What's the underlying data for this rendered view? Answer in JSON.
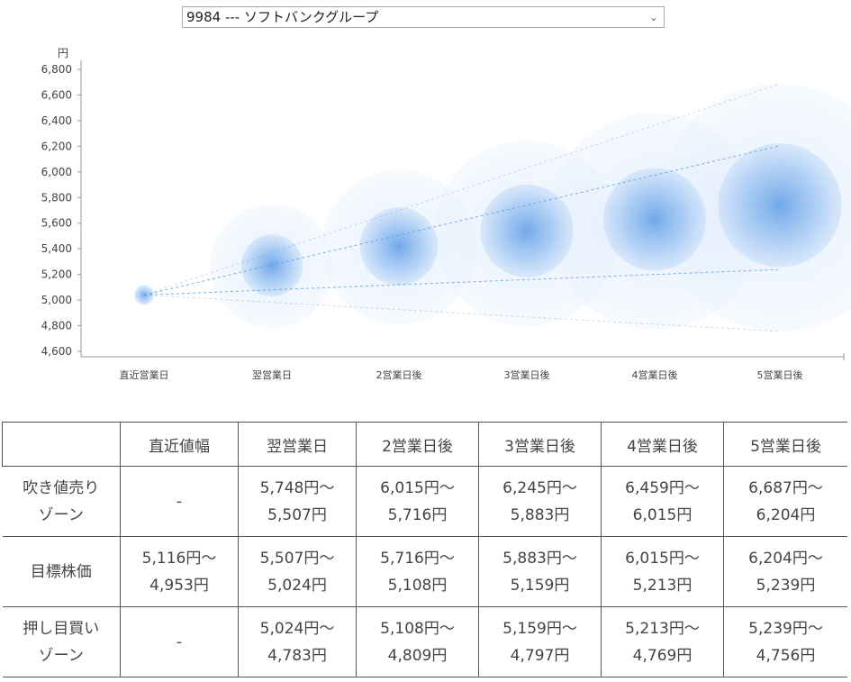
{
  "selector": {
    "value": "9984 --- ソフトバンクグループ"
  },
  "chart_data": {
    "type": "scatter",
    "title": "",
    "xlabel": "",
    "ylabel": "円",
    "ylim": [
      4600,
      6800
    ],
    "yticks": [
      4600,
      4800,
      5000,
      5200,
      5400,
      5600,
      5800,
      6000,
      6200,
      6400,
      6600,
      6800
    ],
    "categories": [
      "直近営業日",
      "翌営業日",
      "2営業日後",
      "3営業日後",
      "4営業日後",
      "5営業日後"
    ],
    "center": [
      5040,
      5270,
      5420,
      5540,
      5630,
      5740
    ],
    "sell_zone_upper": [
      5116,
      5748,
      6015,
      6245,
      6459,
      6687
    ],
    "target_upper": [
      5116,
      5507,
      5716,
      5883,
      6015,
      6204
    ],
    "target_lower": [
      4953,
      5024,
      5108,
      5159,
      5213,
      5239
    ],
    "buy_zone_lower": [
      4953,
      4783,
      4809,
      4797,
      4769,
      4756
    ],
    "grid": false,
    "colors": {
      "bubble": "#4a90e2",
      "outer": "#cfe3fb",
      "dash": "#5b9bd5"
    }
  },
  "table": {
    "headers": [
      "",
      "直近値幅",
      "翌営業日",
      "2営業日後",
      "3営業日後",
      "4営業日後",
      "5営業日後"
    ],
    "rows": [
      {
        "label": [
          "吹き値売り",
          "ゾーン"
        ],
        "cells": [
          [
            "-",
            ""
          ],
          [
            "5,748円～",
            "5,507円"
          ],
          [
            "6,015円～",
            "5,716円"
          ],
          [
            "6,245円～",
            "5,883円"
          ],
          [
            "6,459円～",
            "6,015円"
          ],
          [
            "6,687円～",
            "6,204円"
          ]
        ]
      },
      {
        "label": [
          "目標株価",
          ""
        ],
        "cells": [
          [
            "5,116円～",
            "4,953円"
          ],
          [
            "5,507円～",
            "5,024円"
          ],
          [
            "5,716円～",
            "5,108円"
          ],
          [
            "5,883円～",
            "5,159円"
          ],
          [
            "6,015円～",
            "5,213円"
          ],
          [
            "6,204円～",
            "5,239円"
          ]
        ]
      },
      {
        "label": [
          "押し目買い",
          "ゾーン"
        ],
        "cells": [
          [
            "-",
            ""
          ],
          [
            "5,024円～",
            "4,783円"
          ],
          [
            "5,108円～",
            "4,809円"
          ],
          [
            "5,159円～",
            "4,797円"
          ],
          [
            "5,213円～",
            "4,769円"
          ],
          [
            "5,239円～",
            "4,756円"
          ]
        ]
      }
    ]
  }
}
